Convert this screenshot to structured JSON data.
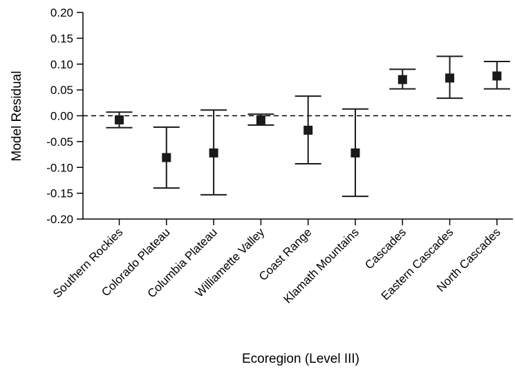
{
  "chart_data": {
    "type": "scatter",
    "subtype": "point-with-error-bars",
    "xlabel": "Ecoregion (Level III)",
    "ylabel": "Model Residual",
    "ylim": [
      -0.2,
      0.2
    ],
    "yticks": [
      "0.20",
      "0.15",
      "0.10",
      "0.05",
      "0.00",
      "-0.05",
      "-0.10",
      "-0.15",
      "-0.20"
    ],
    "reference_line": {
      "y": 0.0,
      "style": "dashed"
    },
    "marker": "square",
    "color": "#1a1a1a",
    "grid": false,
    "categories": [
      "Southern Rockies",
      "Colorado Plateau",
      "Columbia Plateau",
      "Williamette Valley",
      "Coast Range",
      "Klamath Mountains",
      "Cascades",
      "Eastern Cascades",
      "North Cascades"
    ],
    "values": [
      -0.008,
      -0.081,
      -0.072,
      -0.008,
      -0.028,
      -0.072,
      0.07,
      0.073,
      0.077
    ],
    "error_low": [
      -0.023,
      -0.14,
      -0.153,
      -0.018,
      -0.093,
      -0.156,
      0.052,
      0.034,
      0.052
    ],
    "error_high": [
      0.007,
      -0.022,
      0.011,
      0.003,
      0.038,
      0.013,
      0.09,
      0.115,
      0.105
    ]
  }
}
